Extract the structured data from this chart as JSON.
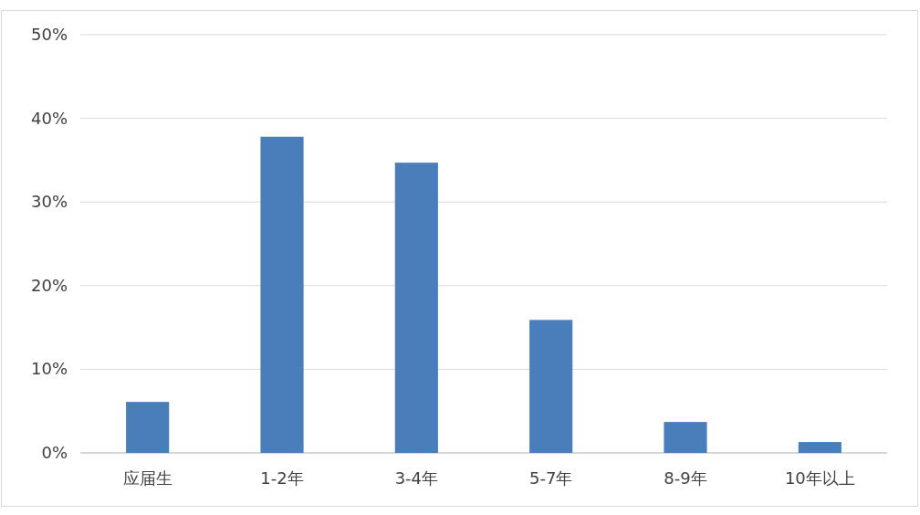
{
  "chart_data": {
    "type": "bar",
    "categories": [
      "应届生",
      "1-2年",
      "3-4年",
      "5-7年",
      "8-9年",
      "10年以上"
    ],
    "values": [
      6.1,
      37.8,
      34.7,
      15.9,
      3.7,
      1.3
    ],
    "color": "#4a7ebb",
    "ylim": [
      0,
      50
    ],
    "yticks": [
      {
        "value": 0,
        "label": "0%"
      },
      {
        "value": 10,
        "label": "10%"
      },
      {
        "value": 20,
        "label": "20%"
      },
      {
        "value": 30,
        "label": "30%"
      },
      {
        "value": 40,
        "label": "40%"
      },
      {
        "value": 50,
        "label": "50%"
      }
    ],
    "grid": "y"
  }
}
